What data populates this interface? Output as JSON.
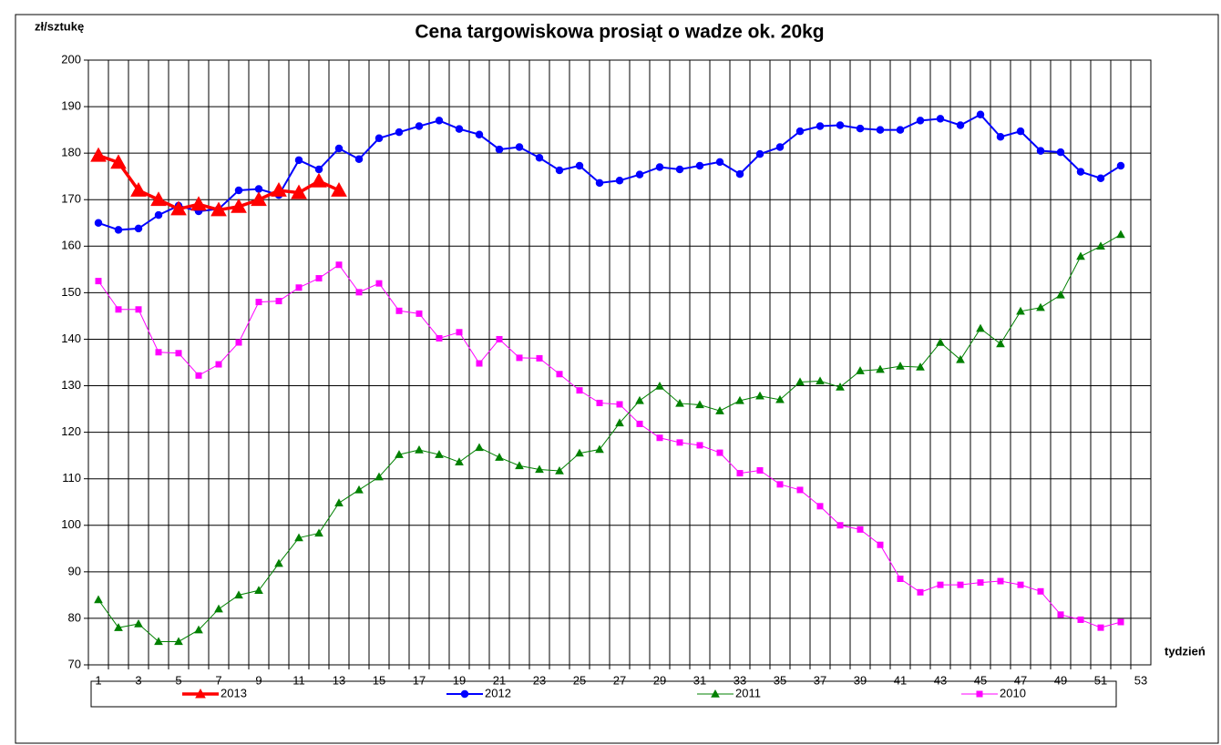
{
  "chart_data": {
    "type": "line",
    "title": "Cena targowiskowa prosiąt o wadze ok. 20kg",
    "y_label": "zł/sztukę",
    "x_label": "tydzień",
    "categories": [
      1,
      null,
      3,
      null,
      5,
      null,
      7,
      null,
      9,
      null,
      11,
      null,
      13,
      null,
      15,
      null,
      17,
      null,
      19,
      null,
      21,
      null,
      23,
      null,
      25,
      null,
      27,
      null,
      29,
      null,
      31,
      null,
      33,
      null,
      35,
      null,
      37,
      null,
      39,
      null,
      41,
      null,
      43,
      null,
      45,
      null,
      47,
      null,
      49,
      null,
      51,
      null,
      53
    ],
    "ylim": [
      70,
      200
    ],
    "yticks": [
      70,
      80,
      90,
      100,
      110,
      120,
      130,
      140,
      150,
      160,
      170,
      180,
      190,
      200
    ],
    "grid": true,
    "series": [
      {
        "name": "2013",
        "color": "#ff0000",
        "marker": "triangle",
        "values": [
          179.5,
          178,
          172,
          170,
          168,
          169,
          167.8,
          168.5,
          170,
          172,
          171.5,
          174,
          172,
          null,
          null,
          null,
          null,
          null,
          null,
          null,
          null,
          null,
          null,
          null,
          null,
          null,
          null,
          null,
          null,
          null,
          null,
          null,
          null,
          null,
          null,
          null,
          null,
          null,
          null,
          null,
          null,
          null,
          null,
          null,
          null,
          null,
          null,
          null,
          null,
          null,
          null,
          null,
          null
        ]
      },
      {
        "name": "2012",
        "color": "#0000ff",
        "marker": "circle",
        "values": [
          165,
          163.5,
          163.8,
          166.7,
          168.7,
          167.5,
          168,
          172,
          172.3,
          171,
          178.5,
          176.5,
          181,
          178.7,
          183.2,
          184.5,
          185.8,
          187,
          185.2,
          184,
          180.8,
          181.3,
          179,
          176.3,
          177.3,
          173.6,
          174.1,
          175.4,
          177,
          176.5,
          177.3,
          178.1,
          175.5,
          179.8,
          181.3,
          184.7,
          185.8,
          186,
          185.3,
          185,
          185,
          187,
          187.4,
          186,
          188.3,
          183.5,
          184.7,
          180.5,
          180.2,
          176,
          174.6,
          177.3,
          null
        ]
      },
      {
        "name": "2011",
        "color": "#008000",
        "marker": "triangle",
        "values": [
          84,
          78,
          78.8,
          75,
          75,
          77.5,
          82,
          85,
          86,
          91.8,
          97.3,
          98.3,
          104.8,
          107.6,
          110.4,
          115.2,
          116.2,
          115.2,
          113.6,
          116.7,
          114.6,
          112.8,
          112,
          111.7,
          115.5,
          116.3,
          122,
          126.8,
          129.9,
          126.2,
          125.9,
          124.6,
          126.8,
          127.8,
          127,
          130.8,
          131,
          129.7,
          133.2,
          133.5,
          134.2,
          134,
          139.3,
          135.6,
          142.3,
          139,
          146,
          146.8,
          149.5,
          157.8,
          160,
          162.5,
          null
        ]
      },
      {
        "name": "2010",
        "color": "#ff00ff",
        "marker": "square",
        "values": [
          152.5,
          146.4,
          146.4,
          137.2,
          137,
          132.2,
          134.6,
          139.3,
          148,
          148.2,
          151.1,
          153.1,
          156,
          150.1,
          152,
          146.1,
          145.5,
          140.2,
          141.5,
          134.8,
          140,
          136,
          135.9,
          132.5,
          129,
          126.3,
          126,
          121.8,
          118.8,
          117.8,
          117.2,
          115.6,
          111.2,
          111.8,
          108.8,
          107.6,
          104.1,
          100,
          99.1,
          95.8,
          88.5,
          85.6,
          87.2,
          87.2,
          87.7,
          88,
          87.2,
          85.8,
          80.8,
          79.7,
          78,
          79.2,
          null
        ]
      }
    ]
  }
}
